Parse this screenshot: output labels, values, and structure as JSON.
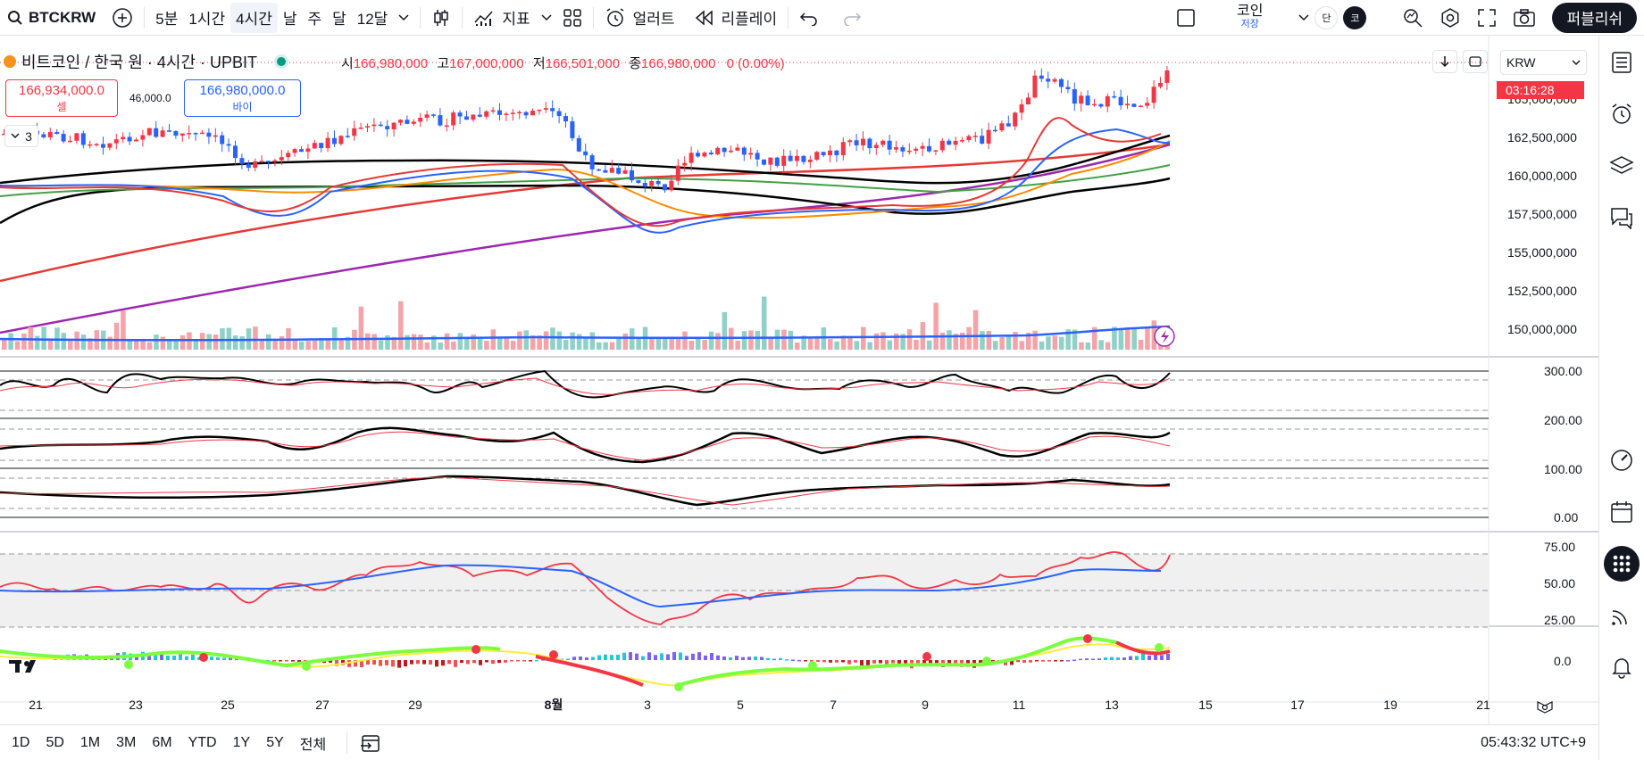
{
  "toolbar": {
    "symbol": "BTCKRW",
    "intervals": [
      "5분",
      "1시간",
      "4시간",
      "날",
      "주",
      "달",
      "12달"
    ],
    "active_interval": "4시간",
    "indicators_label": "지표",
    "alert_label": "얼러트",
    "replay_label": "리플레이",
    "save_label_top": "코인",
    "save_label_bottom": "저장",
    "avatar_single": "단",
    "avatar_user": "코",
    "publish_label": "퍼블리쉬"
  },
  "legend": {
    "title": "비트코인 / 한국 원 · 4시간 · UPBIT",
    "open_label": "시",
    "open": "166,980,000",
    "high_label": "고",
    "high": "167,000,000",
    "low_label": "저",
    "low": "166,501,000",
    "close_label": "종",
    "close": "166,980,000",
    "change": "0 (0.00%)"
  },
  "trade": {
    "sell_price": "166,934,000.0",
    "sell_label": "셀",
    "spread": "46,000.0",
    "buy_price": "166,980,000.0",
    "buy_label": "바이",
    "collapse_count": "3"
  },
  "price_axis": {
    "currency": "KRW",
    "ticks": [
      "165,000,000",
      "162,500,000",
      "160,000,000",
      "157,500,000",
      "155,000,000",
      "152,500,000",
      "150,000,000"
    ],
    "countdown": "03:16:28"
  },
  "osc_axis": [
    "300.00",
    "200.00",
    "100.00",
    "0.00"
  ],
  "rsi_axis": [
    "75.00",
    "50.00",
    "25.00"
  ],
  "macd_axis": [
    "0.0"
  ],
  "time_axis": [
    "21",
    "23",
    "25",
    "27",
    "29",
    "8월",
    "3",
    "5",
    "7",
    "9",
    "11",
    "13",
    "15",
    "17",
    "19",
    "21"
  ],
  "bottom": {
    "ranges": [
      "1D",
      "5D",
      "1M",
      "3M",
      "6M",
      "YTD",
      "1Y",
      "5Y",
      "전체"
    ],
    "clock": "05:43:32 UTC+9"
  },
  "colors": {
    "up": "#f23645",
    "down": "#2962ff",
    "vol_up": "#f4a3a8",
    "vol_down": "#8fd0c8",
    "ma_fast": "#e53935",
    "ma_mid": "#fb8c00",
    "ma_long": "#000000",
    "ma_purple": "#9c27b0",
    "ma_green": "#43a047"
  }
}
